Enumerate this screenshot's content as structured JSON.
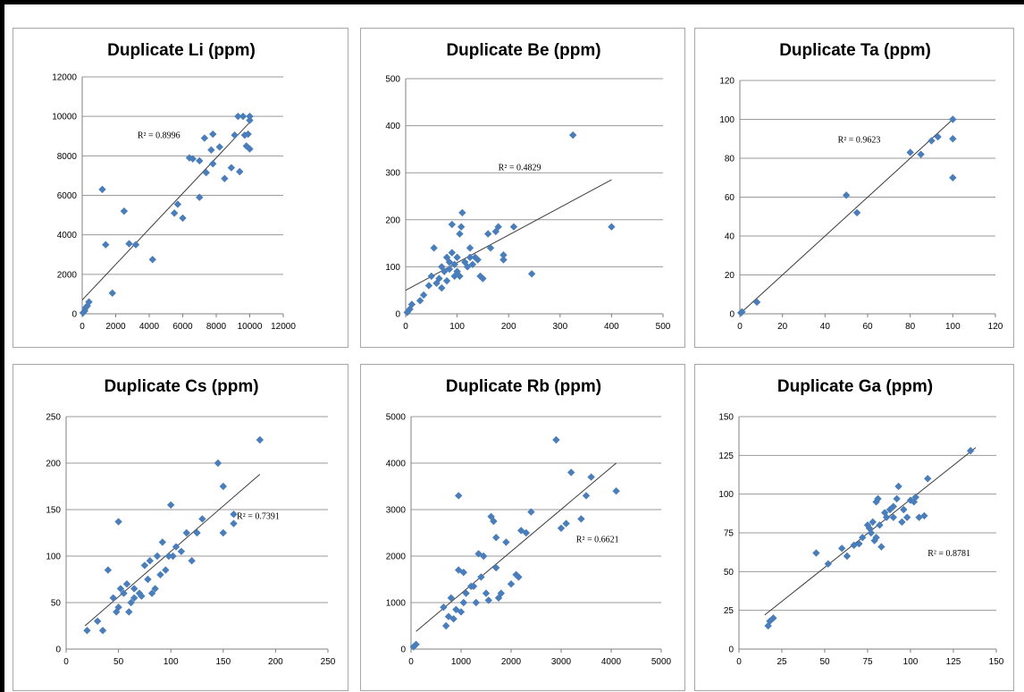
{
  "chart_data": [
    {
      "type": "scatter",
      "title": "Duplicate Li (ppm)",
      "xlim": [
        0,
        12000
      ],
      "ylim": [
        0,
        12000
      ],
      "xticks": [
        "0",
        "2000",
        "4000",
        "6000",
        "8000",
        "10000",
        "12000"
      ],
      "yticks": [
        "0",
        "2000",
        "4000",
        "6000",
        "8000",
        "10000",
        "12000"
      ],
      "grid": "horizontal",
      "trendline": {
        "x": [
          0,
          10000
        ],
        "y": [
          700,
          9700
        ]
      },
      "r2_label": "R² = 0.8996",
      "r2_pos": [
        3300,
        8900
      ],
      "points": [
        [
          50,
          50
        ],
        [
          150,
          150
        ],
        [
          200,
          300
        ],
        [
          300,
          400
        ],
        [
          400,
          600
        ],
        [
          1200,
          6300
        ],
        [
          1400,
          3500
        ],
        [
          1800,
          1050
        ],
        [
          2500,
          5200
        ],
        [
          2800,
          3550
        ],
        [
          3200,
          3500
        ],
        [
          4200,
          2750
        ],
        [
          5500,
          5100
        ],
        [
          5700,
          5550
        ],
        [
          6000,
          4850
        ],
        [
          6400,
          7900
        ],
        [
          6600,
          7850
        ],
        [
          7000,
          7750
        ],
        [
          7000,
          5900
        ],
        [
          7300,
          8900
        ],
        [
          7400,
          7150
        ],
        [
          7700,
          8300
        ],
        [
          7800,
          9100
        ],
        [
          7800,
          7600
        ],
        [
          8200,
          8450
        ],
        [
          8500,
          6850
        ],
        [
          8900,
          7400
        ],
        [
          9100,
          9050
        ],
        [
          9300,
          10000
        ],
        [
          9400,
          7200
        ],
        [
          9600,
          10000
        ],
        [
          9700,
          9050
        ],
        [
          9800,
          8500
        ],
        [
          9900,
          9100
        ],
        [
          10000,
          9800
        ],
        [
          10000,
          8350
        ],
        [
          10000,
          10000
        ]
      ]
    },
    {
      "type": "scatter",
      "title": "Duplicate Be (ppm)",
      "xlim": [
        0,
        500
      ],
      "ylim": [
        0,
        500
      ],
      "xticks": [
        "0",
        "100",
        "200",
        "300",
        "400",
        "500"
      ],
      "yticks": [
        "0",
        "100",
        "200",
        "300",
        "400",
        "500"
      ],
      "grid": "horizontal",
      "trendline": {
        "x": [
          0,
          400
        ],
        "y": [
          50,
          285
        ]
      },
      "r2_label": "R² = 0.4829",
      "r2_pos": [
        180,
        305
      ],
      "points": [
        [
          3,
          3
        ],
        [
          8,
          10
        ],
        [
          12,
          20
        ],
        [
          28,
          28
        ],
        [
          35,
          40
        ],
        [
          45,
          60
        ],
        [
          50,
          80
        ],
        [
          55,
          140
        ],
        [
          60,
          65
        ],
        [
          65,
          75
        ],
        [
          70,
          55
        ],
        [
          70,
          100
        ],
        [
          75,
          90
        ],
        [
          80,
          120
        ],
        [
          80,
          70
        ],
        [
          85,
          95
        ],
        [
          85,
          110
        ],
        [
          90,
          130
        ],
        [
          90,
          190
        ],
        [
          95,
          80
        ],
        [
          95,
          105
        ],
        [
          100,
          120
        ],
        [
          100,
          90
        ],
        [
          105,
          80
        ],
        [
          105,
          170
        ],
        [
          108,
          185
        ],
        [
          110,
          215
        ],
        [
          115,
          110
        ],
        [
          120,
          100
        ],
        [
          125,
          120
        ],
        [
          125,
          140
        ],
        [
          130,
          105
        ],
        [
          135,
          120
        ],
        [
          140,
          115
        ],
        [
          145,
          80
        ],
        [
          150,
          75
        ],
        [
          160,
          170
        ],
        [
          165,
          140
        ],
        [
          175,
          175
        ],
        [
          180,
          185
        ],
        [
          190,
          125
        ],
        [
          190,
          115
        ],
        [
          210,
          185
        ],
        [
          245,
          85
        ],
        [
          325,
          380
        ],
        [
          400,
          185
        ]
      ]
    },
    {
      "type": "scatter",
      "title": "Duplicate Ta (ppm)",
      "xlim": [
        0,
        120
      ],
      "ylim": [
        0,
        120
      ],
      "xticks": [
        "0",
        "20",
        "40",
        "60",
        "80",
        "100",
        "120"
      ],
      "yticks": [
        "0",
        "20",
        "40",
        "60",
        "80",
        "100",
        "120"
      ],
      "grid": "horizontal",
      "trendline": {
        "x": [
          0,
          100
        ],
        "y": [
          0,
          100
        ]
      },
      "r2_label": "R² = 0.9623",
      "r2_pos": [
        46,
        88
      ],
      "points": [
        [
          0.5,
          0.5
        ],
        [
          1,
          1
        ],
        [
          8,
          6
        ],
        [
          55,
          52
        ],
        [
          50,
          61
        ],
        [
          80,
          83
        ],
        [
          85,
          82
        ],
        [
          90,
          89
        ],
        [
          93,
          91
        ],
        [
          100,
          100
        ],
        [
          100,
          90
        ],
        [
          100,
          70
        ]
      ]
    },
    {
      "type": "scatter",
      "title": "Duplicate Cs (ppm)",
      "xlim": [
        0,
        250
      ],
      "ylim": [
        0,
        250
      ],
      "xticks": [
        "0",
        "50",
        "100",
        "150",
        "200",
        "250"
      ],
      "yticks": [
        "0",
        "50",
        "100",
        "150",
        "200",
        "250"
      ],
      "grid": "horizontal",
      "trendline": {
        "x": [
          18,
          185
        ],
        "y": [
          25,
          188
        ]
      },
      "r2_label": "R² = 0.7391",
      "r2_pos": [
        163,
        140
      ],
      "points": [
        [
          20,
          20
        ],
        [
          30,
          30
        ],
        [
          35,
          20
        ],
        [
          40,
          85
        ],
        [
          45,
          55
        ],
        [
          48,
          40
        ],
        [
          50,
          45
        ],
        [
          50,
          137
        ],
        [
          52,
          65
        ],
        [
          55,
          60
        ],
        [
          58,
          70
        ],
        [
          60,
          40
        ],
        [
          62,
          50
        ],
        [
          65,
          65
        ],
        [
          65,
          55
        ],
        [
          70,
          60
        ],
        [
          72,
          57
        ],
        [
          75,
          90
        ],
        [
          78,
          75
        ],
        [
          80,
          95
        ],
        [
          82,
          60
        ],
        [
          85,
          65
        ],
        [
          87,
          100
        ],
        [
          90,
          80
        ],
        [
          92,
          115
        ],
        [
          95,
          85
        ],
        [
          98,
          100
        ],
        [
          100,
          155
        ],
        [
          102,
          100
        ],
        [
          105,
          110
        ],
        [
          110,
          105
        ],
        [
          115,
          125
        ],
        [
          120,
          95
        ],
        [
          125,
          125
        ],
        [
          130,
          140
        ],
        [
          145,
          200
        ],
        [
          150,
          175
        ],
        [
          150,
          125
        ],
        [
          160,
          145
        ],
        [
          160,
          135
        ],
        [
          185,
          225
        ]
      ]
    },
    {
      "type": "scatter",
      "title": "Duplicate Rb (ppm)",
      "xlim": [
        0,
        5000
      ],
      "ylim": [
        0,
        5000
      ],
      "xticks": [
        "0",
        "1000",
        "2000",
        "3000",
        "4000",
        "5000"
      ],
      "yticks": [
        "0",
        "1000",
        "2000",
        "3000",
        "4000",
        "5000"
      ],
      "grid": "horizontal",
      "trendline": {
        "x": [
          100,
          4100
        ],
        "y": [
          380,
          4000
        ]
      },
      "r2_label": "R² = 0.6621",
      "r2_pos": [
        3300,
        2300
      ],
      "points": [
        [
          50,
          50
        ],
        [
          100,
          100
        ],
        [
          650,
          900
        ],
        [
          700,
          500
        ],
        [
          750,
          700
        ],
        [
          800,
          1100
        ],
        [
          850,
          650
        ],
        [
          900,
          850
        ],
        [
          950,
          1700
        ],
        [
          950,
          3300
        ],
        [
          1000,
          800
        ],
        [
          1050,
          1650
        ],
        [
          1050,
          1000
        ],
        [
          1100,
          1200
        ],
        [
          1200,
          1350
        ],
        [
          1250,
          1350
        ],
        [
          1300,
          1000
        ],
        [
          1350,
          2050
        ],
        [
          1400,
          1550
        ],
        [
          1450,
          2000
        ],
        [
          1500,
          1200
        ],
        [
          1550,
          1050
        ],
        [
          1600,
          2850
        ],
        [
          1650,
          2750
        ],
        [
          1700,
          1750
        ],
        [
          1700,
          2400
        ],
        [
          1750,
          1100
        ],
        [
          1800,
          1200
        ],
        [
          1900,
          2300
        ],
        [
          2000,
          1400
        ],
        [
          2100,
          1600
        ],
        [
          2150,
          1550
        ],
        [
          2200,
          2550
        ],
        [
          2300,
          2500
        ],
        [
          2400,
          2950
        ],
        [
          2900,
          4500
        ],
        [
          3000,
          2600
        ],
        [
          3100,
          2700
        ],
        [
          3200,
          3800
        ],
        [
          3400,
          2800
        ],
        [
          3500,
          3300
        ],
        [
          3600,
          3700
        ],
        [
          4100,
          3400
        ]
      ]
    },
    {
      "type": "scatter",
      "title": "Duplicate Ga (ppm)",
      "xlim": [
        0,
        150
      ],
      "ylim": [
        0,
        150
      ],
      "xticks": [
        "0",
        "25",
        "50",
        "75",
        "100",
        "125",
        "150"
      ],
      "yticks": [
        "0",
        "25",
        "50",
        "75",
        "100",
        "125",
        "150"
      ],
      "grid": "horizontal",
      "trendline": {
        "x": [
          15,
          138
        ],
        "y": [
          22,
          130
        ]
      },
      "r2_label": "R² = 0.8781",
      "r2_pos": [
        110,
        60
      ],
      "points": [
        [
          17,
          15
        ],
        [
          18,
          18
        ],
        [
          20,
          20
        ],
        [
          45,
          62
        ],
        [
          52,
          55
        ],
        [
          60,
          65
        ],
        [
          63,
          60
        ],
        [
          67,
          67
        ],
        [
          70,
          68
        ],
        [
          72,
          72
        ],
        [
          75,
          80
        ],
        [
          76,
          78
        ],
        [
          77,
          75
        ],
        [
          78,
          82
        ],
        [
          79,
          70
        ],
        [
          80,
          95
        ],
        [
          80,
          72
        ],
        [
          81,
          97
        ],
        [
          82,
          80
        ],
        [
          83,
          66
        ],
        [
          85,
          88
        ],
        [
          86,
          85
        ],
        [
          88,
          90
        ],
        [
          90,
          85
        ],
        [
          90,
          92
        ],
        [
          92,
          97
        ],
        [
          93,
          105
        ],
        [
          95,
          82
        ],
        [
          96,
          90
        ],
        [
          98,
          85
        ],
        [
          100,
          96
        ],
        [
          102,
          95
        ],
        [
          103,
          98
        ],
        [
          105,
          85
        ],
        [
          108,
          86
        ],
        [
          110,
          110
        ],
        [
          135,
          128
        ]
      ]
    }
  ]
}
